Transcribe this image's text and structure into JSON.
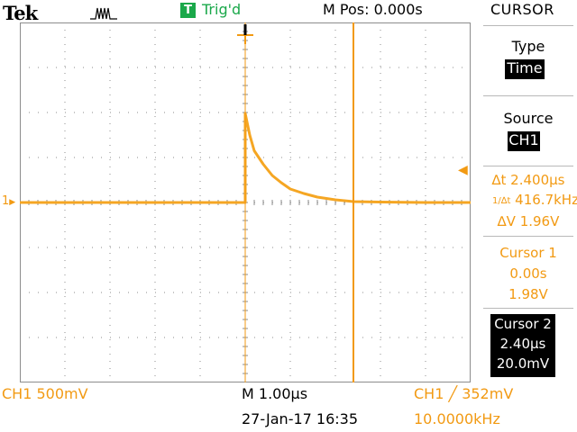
{
  "header": {
    "brand": "Tek",
    "acquire_icon": "pulse-run-icon",
    "trigger_badge": "T",
    "trigger_status": "Trig'd",
    "main_position": "M Pos: 0.000s",
    "menu_title": "CURSOR"
  },
  "menu": {
    "type_label": "Type",
    "type_value": "Time",
    "source_label": "Source",
    "source_value": "CH1",
    "readouts": {
      "delta_t": "∆t 2.400µs",
      "inverse_freq": "416.7kHz",
      "delta_v": "∆V 1.96V"
    },
    "cursor1": {
      "label": "Cursor 1",
      "time": "0.00s",
      "volts": "1.98V"
    },
    "cursor2": {
      "label": "Cursor 2",
      "time": "2.40µs",
      "volts": "20.0mV"
    }
  },
  "footer": {
    "ch1_scale": "CH1  500mV",
    "timebase": "M 1.00µs",
    "trigger": "CH1 ╱ 352mV",
    "date": "27-Jan-17 16:35",
    "frequency": "10.0000kHz"
  },
  "colors": {
    "trace": "#f5a623",
    "cursor": "#f29a13",
    "trig_green": "#1aa84a",
    "grid": "#8c8c8c"
  },
  "chart_data": {
    "type": "line",
    "x_unit": "µs",
    "y_unit": "V",
    "xlim": [
      -5,
      5
    ],
    "ylim": [
      -4,
      4
    ],
    "grid": true,
    "x": [
      -5,
      -4,
      -3,
      -2,
      -1,
      0,
      0.1,
      0.2,
      0.4,
      0.6,
      0.8,
      1.0,
      1.3,
      1.6,
      2.0,
      2.4,
      3,
      4,
      5
    ],
    "series": [
      {
        "values": [
          0,
          0,
          0,
          0,
          0,
          1.98,
          1.5,
          1.15,
          0.85,
          0.6,
          0.44,
          0.3,
          0.2,
          0.12,
          0.06,
          0.02,
          0.01,
          0,
          0
        ]
      }
    ],
    "cursors_x": [
      0,
      2.4
    ]
  }
}
